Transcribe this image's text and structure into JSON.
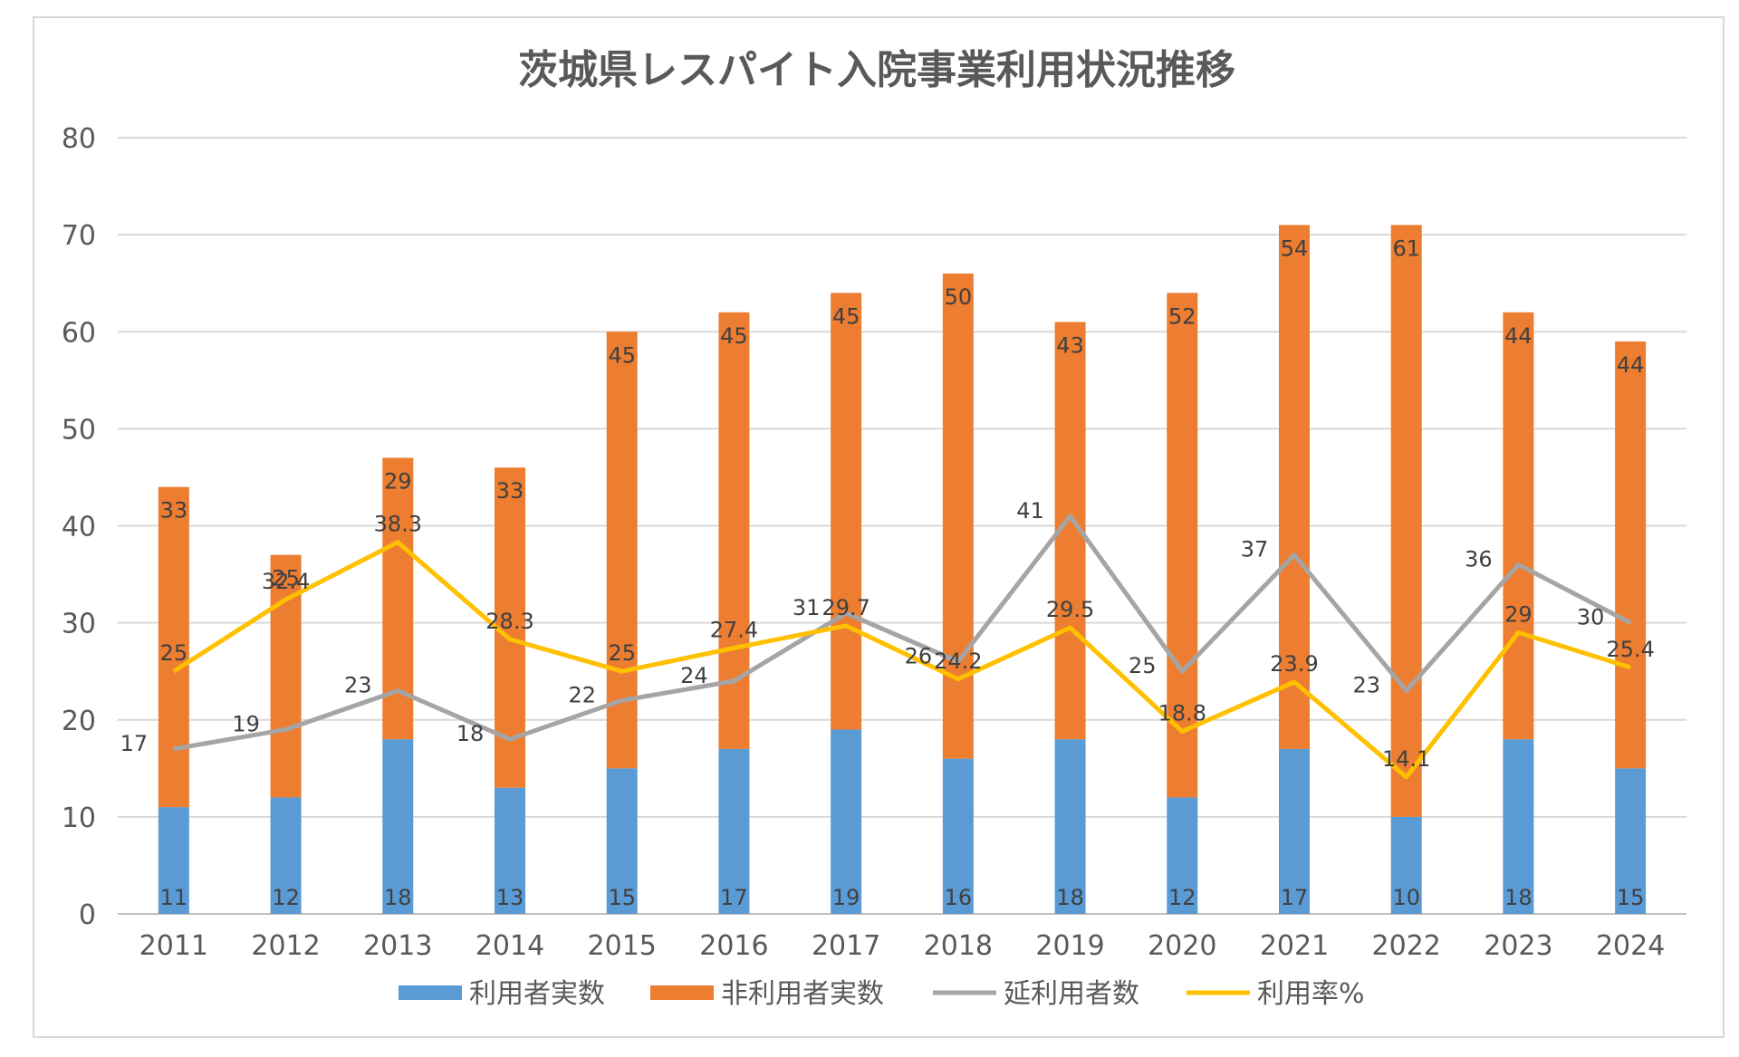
{
  "chart_data": {
    "type": "bar",
    "title": "茨城県レスパイト入院事業利用状況推移",
    "categories": [
      "2011",
      "2012",
      "2013",
      "2014",
      "2015",
      "2016",
      "2017",
      "2018",
      "2019",
      "2020",
      "2021",
      "2022",
      "2023",
      "2024"
    ],
    "ylim": [
      0,
      80
    ],
    "yticks": [
      0,
      10,
      20,
      30,
      40,
      50,
      60,
      70,
      80
    ],
    "grid": true,
    "legend_position": "bottom",
    "stacked_bars": [
      {
        "name": "利用者実数",
        "color": "#5B9BD5",
        "values": [
          11,
          12,
          18,
          13,
          15,
          17,
          19,
          16,
          18,
          12,
          17,
          10,
          18,
          15
        ]
      },
      {
        "name": "非利用者実数",
        "color": "#ED7D31",
        "values": [
          33,
          25,
          29,
          33,
          45,
          45,
          45,
          50,
          43,
          52,
          54,
          61,
          44,
          44
        ]
      }
    ],
    "lines": [
      {
        "name": "延利用者数",
        "color": "#A5A5A5",
        "values": [
          17,
          19,
          23,
          18,
          22,
          24,
          31,
          26,
          41,
          25,
          37,
          23,
          36,
          30
        ]
      },
      {
        "name": "利用率%",
        "color": "#FFC000",
        "values": [
          25,
          32.4,
          38.3,
          28.3,
          25,
          27.4,
          29.7,
          24.2,
          29.5,
          18.8,
          23.9,
          14.1,
          29,
          25.4
        ]
      }
    ]
  }
}
